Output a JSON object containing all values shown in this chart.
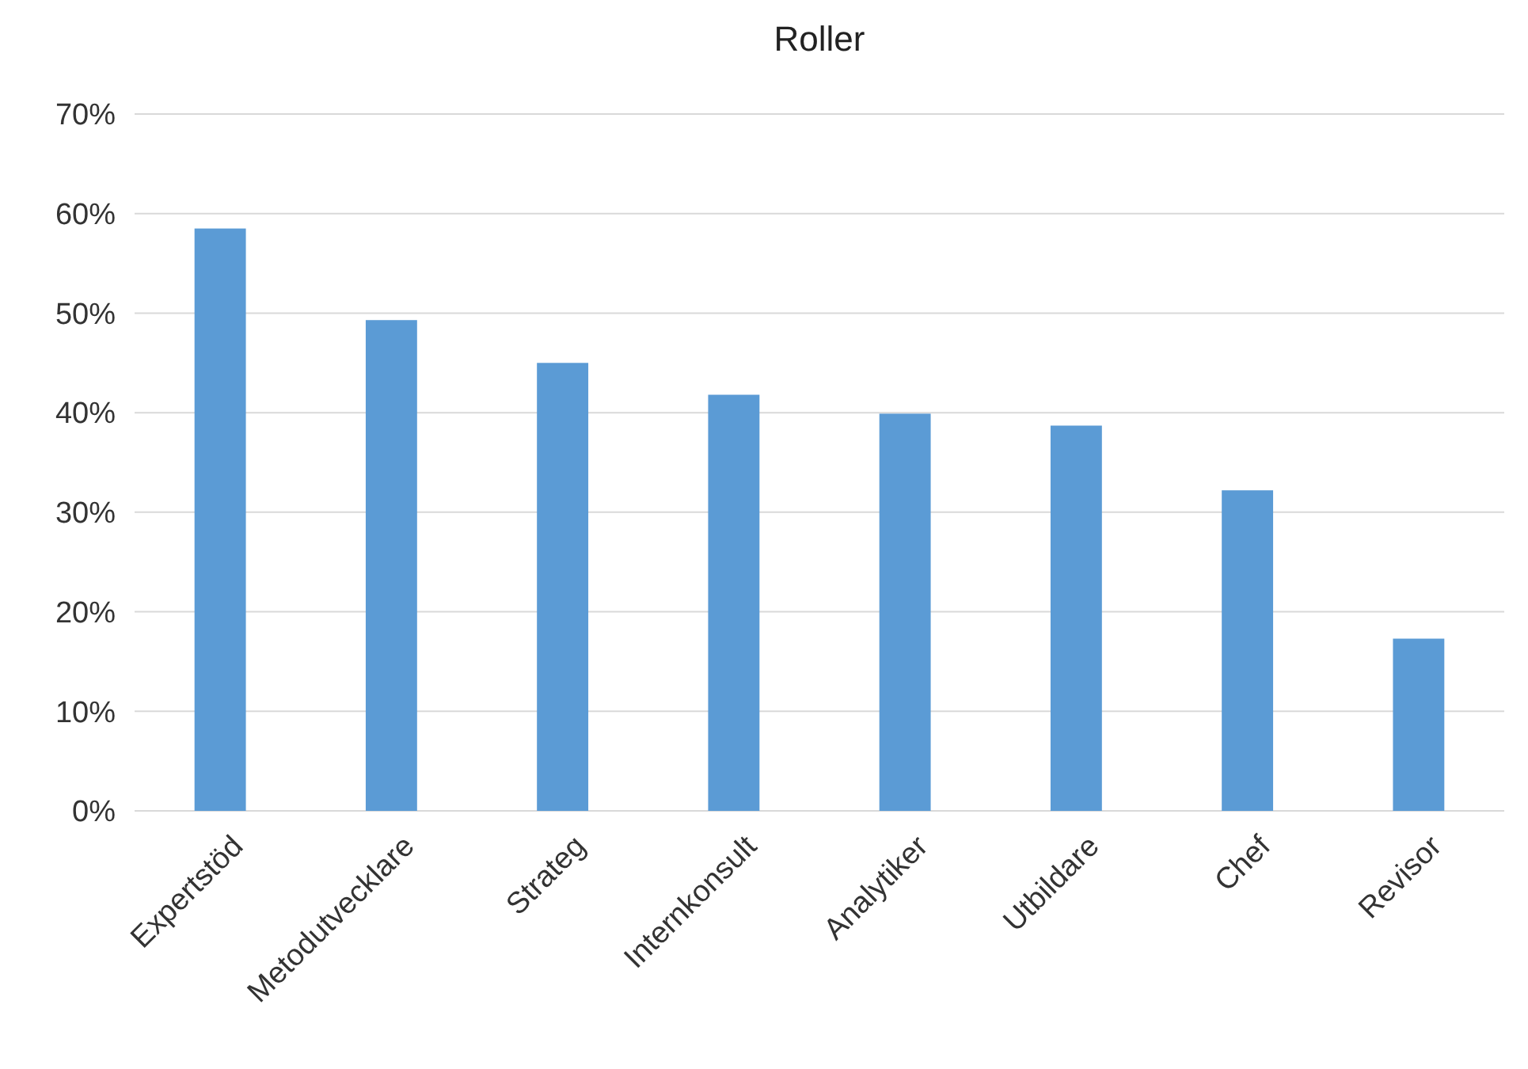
{
  "chart_data": {
    "type": "bar",
    "title": "Roller",
    "categories": [
      "Expertstöd",
      "Metodutvecklare",
      "Strateg",
      "Internkonsult",
      "Analytiker",
      "Utbildare",
      "Chef",
      "Revisor"
    ],
    "values": [
      58.5,
      49.3,
      45,
      41.8,
      39.9,
      38.7,
      32.2,
      17.3
    ],
    "color": "#5b9bd5",
    "ylim": [
      0,
      70
    ],
    "yticks": [
      {
        "value": 0,
        "label": "0%"
      },
      {
        "value": 10,
        "label": "10%"
      },
      {
        "value": 20,
        "label": "20%"
      },
      {
        "value": 30,
        "label": "30%"
      },
      {
        "value": 40,
        "label": "40%"
      },
      {
        "value": 50,
        "label": "50%"
      },
      {
        "value": 60,
        "label": "60%"
      },
      {
        "value": 70,
        "label": "70%"
      }
    ],
    "grid": "y"
  }
}
